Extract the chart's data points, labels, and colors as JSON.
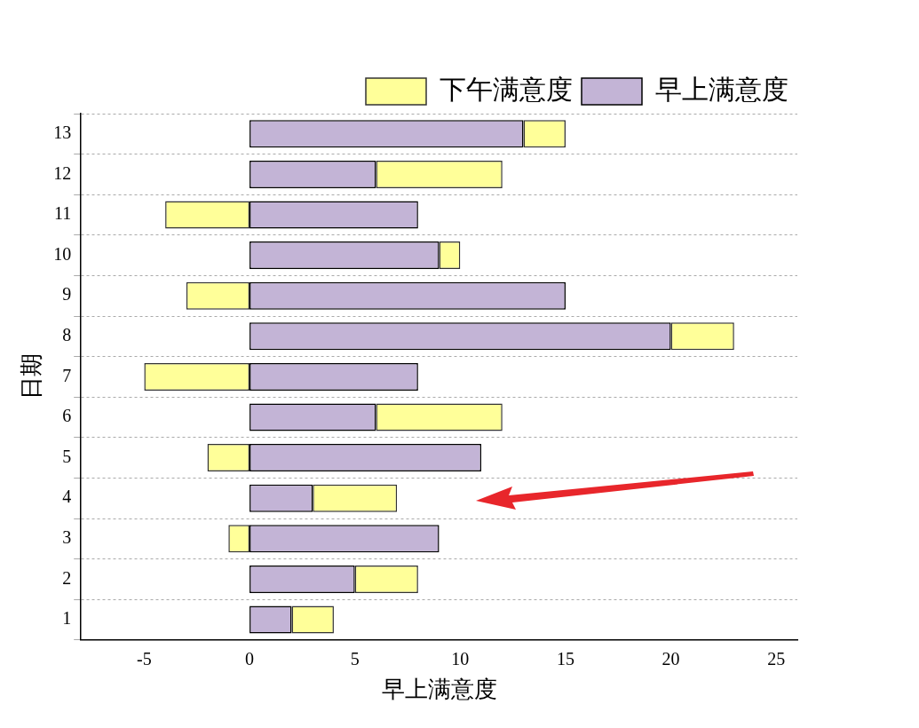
{
  "chart_data": {
    "type": "bar",
    "orientation": "horizontal",
    "stacked": true,
    "xlabel": "早上满意度",
    "ylabel": "日期",
    "categories": [
      "13",
      "12",
      "11",
      "10",
      "9",
      "8",
      "7",
      "6",
      "5",
      "4",
      "3",
      "2",
      "1"
    ],
    "series": [
      {
        "name": "早上满意度",
        "color": "#c3b4d6",
        "values": [
          13,
          6,
          8,
          9,
          15,
          20,
          8,
          6,
          11,
          3,
          9,
          5,
          2
        ]
      },
      {
        "name": "下午满意度",
        "color": "#ffff99",
        "values": [
          2,
          6,
          -4,
          1,
          -3,
          3,
          -5,
          6,
          -2,
          4,
          -1,
          3,
          2
        ]
      }
    ],
    "xlim": [
      -8,
      26
    ],
    "xticks": [
      -5,
      0,
      5,
      10,
      15,
      20,
      25
    ],
    "grid": "y",
    "legend": "top right"
  }
}
